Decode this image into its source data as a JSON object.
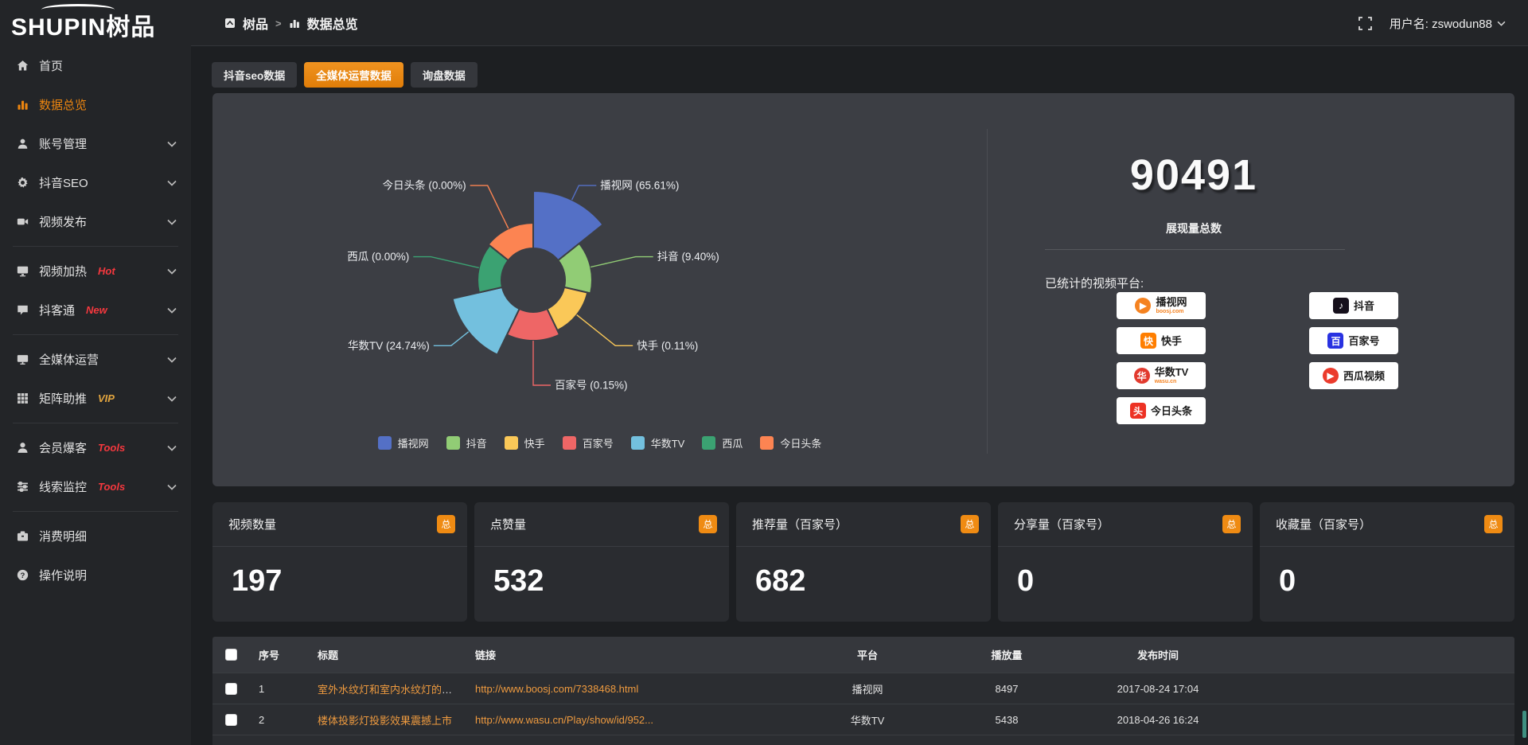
{
  "header": {
    "logo_text": "SHUPIN树品",
    "breadcrumb": {
      "root": "树品",
      "separator": ">",
      "current": "数据总览"
    },
    "username": "用户名: zswodun88"
  },
  "sidebar": {
    "items": [
      {
        "icon": "home-icon",
        "label": "首页"
      },
      {
        "icon": "chart-icon",
        "label": "数据总览",
        "active": true
      },
      {
        "icon": "user-icon",
        "label": "账号管理",
        "chevron": true
      },
      {
        "icon": "gear-icon",
        "label": "抖音SEO",
        "chevron": true
      },
      {
        "icon": "video-icon",
        "label": "视频发布",
        "chevron": true,
        "divider_after": true
      },
      {
        "icon": "screen-icon",
        "label": "视频加热",
        "badge": "Hot",
        "badge_color": "#f5383e",
        "chevron": true
      },
      {
        "icon": "comment-icon",
        "label": "抖客通",
        "badge": "New",
        "badge_color": "#f5383e",
        "chevron": true,
        "divider_after": true
      },
      {
        "icon": "monitor-icon",
        "label": "全媒体运营",
        "chevron": true
      },
      {
        "icon": "grid-icon",
        "label": "矩阵助推",
        "badge": "VIP",
        "badge_color": "#e2a53f",
        "chevron": true,
        "divider_after": true
      },
      {
        "icon": "person-icon",
        "label": "会员爆客",
        "badge": "Tools",
        "badge_color": "#f5383e",
        "chevron": true
      },
      {
        "icon": "sliders-icon",
        "label": "线索监控",
        "badge": "Tools",
        "badge_color": "#f5383e",
        "chevron": true,
        "divider_after": true
      },
      {
        "icon": "wallet-icon",
        "label": "消费明细"
      },
      {
        "icon": "question-icon",
        "label": "操作说明"
      }
    ]
  },
  "tabs": [
    {
      "label": "抖音seo数据",
      "active": false
    },
    {
      "label": "全媒体运营数据",
      "active": true
    },
    {
      "label": "询盘数据",
      "active": false
    }
  ],
  "chart_data": {
    "type": "pie",
    "variant": "nightingale-rose",
    "unit": "%",
    "legend_position": "bottom",
    "series": [
      {
        "name": "播视网",
        "value": 65.61,
        "color": "#5470c6",
        "display_radius": 112
      },
      {
        "name": "抖音",
        "value": 9.4,
        "color": "#91cc75",
        "display_radius": 74
      },
      {
        "name": "快手",
        "value": 0.11,
        "color": "#fac858",
        "display_radius": 70
      },
      {
        "name": "百家号",
        "value": 0.15,
        "color": "#ee6666",
        "display_radius": 76
      },
      {
        "name": "华数TV",
        "value": 24.74,
        "color": "#73c0de",
        "display_radius": 104
      },
      {
        "name": "西瓜",
        "value": 0.0,
        "color": "#3ba272",
        "display_radius": 70
      },
      {
        "name": "今日头条",
        "value": 0.0,
        "color": "#fc8452",
        "display_radius": 72
      }
    ]
  },
  "summary": {
    "total": "90491",
    "total_label": "展现量总数",
    "platforms_label": "已统计的视频平台:",
    "platforms": [
      {
        "name": "播视网",
        "sub": "boosj.com",
        "sub_color": "#f58220",
        "glyph": "▶",
        "glyph_bg": "#f58220",
        "glyph_round": true
      },
      {
        "name": "抖音",
        "sub": "",
        "sub_color": "",
        "glyph": "♪",
        "glyph_bg": "#16101c",
        "glyph_round": false
      },
      {
        "name": "快手",
        "sub": "",
        "sub_color": "",
        "glyph": "快",
        "glyph_bg": "#ff7e00",
        "glyph_round": false
      },
      {
        "name": "百家号",
        "sub": "",
        "sub_color": "",
        "glyph": "百",
        "glyph_bg": "#2932e1",
        "glyph_round": false
      },
      {
        "name": "华数TV",
        "sub": "wasu.cn",
        "sub_color": "#f58220",
        "glyph": "华",
        "glyph_bg": "#e23a2e",
        "glyph_round": true
      },
      {
        "name": "西瓜视频",
        "sub": "",
        "sub_color": "",
        "glyph": "▶",
        "glyph_bg": "#eb3b2c",
        "glyph_round": true
      },
      {
        "name": "今日头条",
        "sub": "",
        "sub_color": "",
        "glyph": "头",
        "glyph_bg": "#ed3224",
        "glyph_round": false
      }
    ]
  },
  "stat_cards": [
    {
      "title": "视频数量",
      "badge": "总",
      "value": "197"
    },
    {
      "title": "点赞量",
      "badge": "总",
      "value": "532"
    },
    {
      "title": "推荐量（百家号）",
      "badge": "总",
      "value": "682"
    },
    {
      "title": "分享量（百家号）",
      "badge": "总",
      "value": "0"
    },
    {
      "title": "收藏量（百家号）",
      "badge": "总",
      "value": "0"
    }
  ],
  "table": {
    "columns": [
      "序号",
      "标题",
      "链接",
      "平台",
      "播放量",
      "发布时间"
    ],
    "rows": [
      {
        "no": "1",
        "title": "室外水纹灯和室内水纹灯的区别和简介",
        "link": "http://www.boosj.com/7338468.html",
        "platform": "播视网",
        "plays": "8497",
        "time": "2017-08-24 17:04"
      },
      {
        "no": "2",
        "title": "楼体投影灯投影效果震撼上市",
        "link": "http://www.wasu.cn/Play/show/id/952...",
        "platform": "华数TV",
        "plays": "5438",
        "time": "2018-04-26 16:24"
      }
    ]
  },
  "colors": {
    "accent_orange": "#ec850f",
    "link_orange": "#ee9a3f",
    "panel_bg": "#3c3e44",
    "card_bg": "#2a2c30",
    "sidebar_bg": "#232528",
    "page_bg": "#1d1f22"
  }
}
